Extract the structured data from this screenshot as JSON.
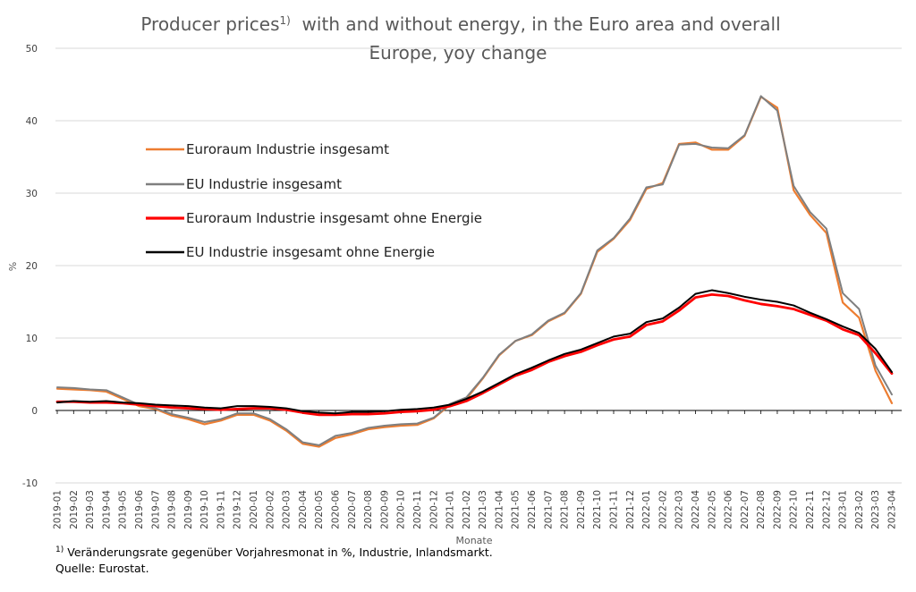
{
  "chart_data": {
    "type": "line",
    "title_main": "Producer prices",
    "title_sup": "1)",
    "title_rest": "  with and without energy, in the Euro area and overall",
    "title_line2": "Europe, yoy change",
    "xlabel": "Monate",
    "ylabel": "%",
    "ylim": [
      -10,
      50
    ],
    "yticks": [
      -10,
      0,
      10,
      20,
      30,
      40,
      50
    ],
    "ytick_labels": [
      "-10",
      "0",
      "10",
      "20",
      "30",
      "40",
      "50"
    ],
    "grid": "horizontal",
    "legend_position": "upper-left",
    "x": [
      "2019-01",
      "2019-02",
      "2019-03",
      "2019-04",
      "2019-05",
      "2019-06",
      "2019-07",
      "2019-08",
      "2019-09",
      "2019-10",
      "2019-11",
      "2019-12",
      "2020-01",
      "2020-02",
      "2020-03",
      "2020-04",
      "2020-05",
      "2020-06",
      "2020-07",
      "2020-08",
      "2020-09",
      "2020-10",
      "2020-11",
      "2020-12",
      "2021-01",
      "2021-02",
      "2021-03",
      "2021-04",
      "2021-05",
      "2021-06",
      "2021-07",
      "2021-08",
      "2021-09",
      "2021-10",
      "2021-11",
      "2021-12",
      "2022-01",
      "2022-02",
      "2022-03",
      "2022-04",
      "2022-05",
      "2022-06",
      "2022-07",
      "2022-08",
      "2022-09",
      "2022-10",
      "2022-11",
      "2022-12",
      "2023-01",
      "2023-02",
      "2023-03",
      "2023-04"
    ],
    "series": [
      {
        "name": "Euroraum Industrie insgesamt",
        "color": "#ED7D31",
        "width": 2.2,
        "values": [
          3.0,
          2.9,
          2.8,
          2.6,
          1.6,
          0.6,
          0.2,
          -0.7,
          -1.2,
          -1.9,
          -1.4,
          -0.6,
          -0.6,
          -1.4,
          -2.8,
          -4.6,
          -5.0,
          -3.8,
          -3.3,
          -2.6,
          -2.3,
          -2.1,
          -2.0,
          -1.1,
          0.8,
          1.6,
          4.4,
          7.6,
          9.6,
          10.4,
          12.3,
          13.4,
          16.1,
          21.9,
          23.7,
          26.3,
          30.6,
          31.4,
          36.8,
          37.0,
          36.0,
          36.0,
          37.9,
          43.3,
          41.8,
          30.4,
          27.0,
          24.5,
          14.9,
          12.8,
          5.5,
          1.0
        ]
      },
      {
        "name": "EU Industrie insgesamt",
        "color": "#7F7F7F",
        "width": 2.0,
        "values": [
          3.2,
          3.1,
          2.9,
          2.8,
          1.8,
          0.8,
          0.3,
          -0.5,
          -1.0,
          -1.6,
          -1.2,
          -0.4,
          -0.4,
          -1.2,
          -2.6,
          -4.4,
          -4.8,
          -3.5,
          -3.1,
          -2.4,
          -2.1,
          -1.9,
          -1.8,
          -1.0,
          0.9,
          1.8,
          4.5,
          7.7,
          9.6,
          10.5,
          12.4,
          13.5,
          16.2,
          22.1,
          23.8,
          26.5,
          30.8,
          31.2,
          36.7,
          36.8,
          36.3,
          36.2,
          38.0,
          43.4,
          41.4,
          31.0,
          27.4,
          25.1,
          16.2,
          14.0,
          6.2,
          2.2
        ]
      },
      {
        "name": "Euroraum Industrie insgesamt ohne Energie",
        "color": "#FF0000",
        "width": 2.8,
        "values": [
          1.2,
          1.2,
          1.1,
          1.1,
          1.0,
          0.8,
          0.6,
          0.4,
          0.3,
          0.2,
          0.1,
          0.2,
          0.3,
          0.3,
          0.1,
          -0.3,
          -0.6,
          -0.6,
          -0.5,
          -0.5,
          -0.4,
          -0.2,
          -0.1,
          0.1,
          0.6,
          1.3,
          2.4,
          3.6,
          4.8,
          5.6,
          6.7,
          7.5,
          8.1,
          9.0,
          9.8,
          10.2,
          11.8,
          12.3,
          13.8,
          15.6,
          16.0,
          15.8,
          15.2,
          14.7,
          14.4,
          14.0,
          13.2,
          12.4,
          11.2,
          10.4,
          7.9,
          5.1
        ]
      },
      {
        "name": "EU Industrie insgesamt ohne Energie",
        "color": "#000000",
        "width": 2.0,
        "values": [
          1.1,
          1.3,
          1.2,
          1.3,
          1.1,
          1.0,
          0.8,
          0.7,
          0.6,
          0.4,
          0.3,
          0.6,
          0.6,
          0.5,
          0.3,
          -0.1,
          -0.3,
          -0.4,
          -0.2,
          -0.2,
          -0.1,
          0.1,
          0.2,
          0.4,
          0.8,
          1.6,
          2.6,
          3.8,
          5.0,
          5.9,
          6.9,
          7.8,
          8.4,
          9.3,
          10.2,
          10.6,
          12.2,
          12.7,
          14.2,
          16.1,
          16.6,
          16.2,
          15.7,
          15.3,
          15.0,
          14.5,
          13.5,
          12.6,
          11.6,
          10.7,
          8.5,
          5.3
        ]
      }
    ]
  },
  "footnote": {
    "sup": "1)",
    "line1": "Veränderungsrate gegenüber Vorjahresmonat in %, Industrie, Inlandsmarkt.",
    "line2": "Quelle: Eurostat."
  }
}
